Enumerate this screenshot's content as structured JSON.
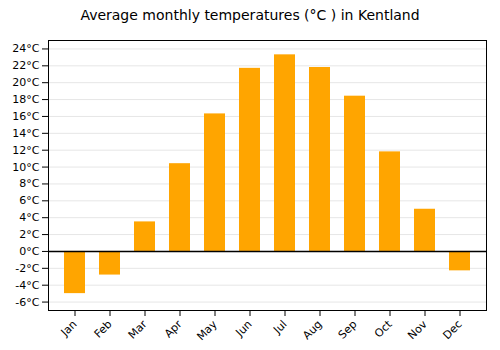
{
  "chart_data": {
    "type": "bar",
    "title": "Average monthly temperatures (°C ) in Kentland",
    "categories": [
      "Jan",
      "Feb",
      "Mar",
      "Apr",
      "May",
      "Jun",
      "Jul",
      "Aug",
      "Sep",
      "Oct",
      "Nov",
      "Dec"
    ],
    "values": [
      -5.0,
      -2.8,
      3.5,
      10.4,
      16.3,
      21.7,
      23.3,
      21.8,
      18.4,
      11.8,
      5.0,
      -2.3
    ],
    "color": "#FFA500",
    "ylim": [
      -7,
      25
    ],
    "yticks": [
      {
        "value": -6,
        "label": "-6°C"
      },
      {
        "value": -4,
        "label": "-4°C"
      },
      {
        "value": -2,
        "label": "-2°C"
      },
      {
        "value": 0,
        "label": "0°C"
      },
      {
        "value": 2,
        "label": "2°C"
      },
      {
        "value": 4,
        "label": "4°C"
      },
      {
        "value": 6,
        "label": "6°C"
      },
      {
        "value": 8,
        "label": "8°C"
      },
      {
        "value": 10,
        "label": "10°C"
      },
      {
        "value": 12,
        "label": "12°C"
      },
      {
        "value": 14,
        "label": "14°C"
      },
      {
        "value": 16,
        "label": "16°C"
      },
      {
        "value": 18,
        "label": "18°C"
      },
      {
        "value": 20,
        "label": "20°C"
      },
      {
        "value": 22,
        "label": "22°C"
      },
      {
        "value": 24,
        "label": "24°C"
      }
    ],
    "grid": true
  }
}
